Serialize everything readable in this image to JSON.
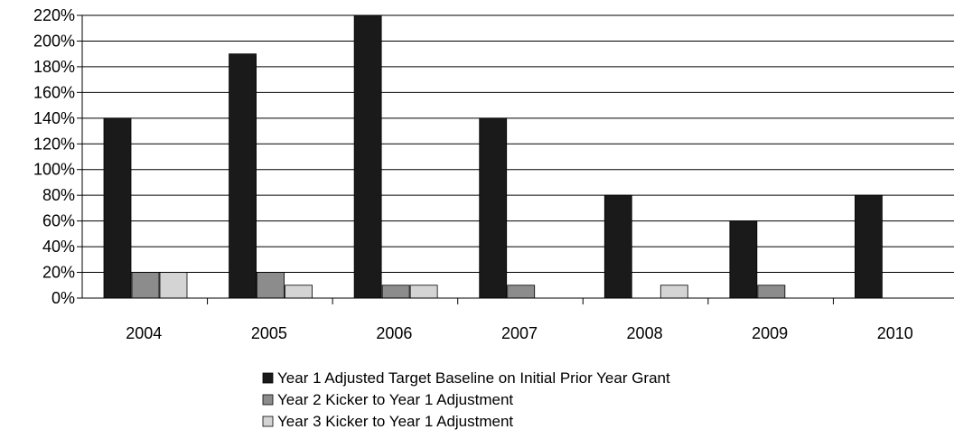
{
  "chart_data": {
    "type": "bar",
    "categories": [
      "2004",
      "2005",
      "2006",
      "2007",
      "2008",
      "2009",
      "2010"
    ],
    "series": [
      {
        "name": "Year 1 Adjusted Target Baseline on Initial Prior Year Grant",
        "color": "#1a1a1a",
        "values": [
          140,
          190,
          220,
          140,
          80,
          60,
          80
        ]
      },
      {
        "name": "Year 2 Kicker to Year 1 Adjustment",
        "color": "#8c8c8c",
        "values": [
          20,
          20,
          10,
          10,
          0,
          10,
          0
        ]
      },
      {
        "name": "Year 3 Kicker to Year 1 Adjustment",
        "color": "#d4d4d4",
        "values": [
          20,
          10,
          10,
          0,
          10,
          0,
          0
        ]
      }
    ],
    "y_ticks": [
      "0%",
      "20%",
      "40%",
      "60%",
      "80%",
      "100%",
      "120%",
      "140%",
      "160%",
      "180%",
      "200%",
      "220%"
    ],
    "ylim": [
      0,
      220
    ],
    "grid": true,
    "legend_position": "bottom-center",
    "title": "",
    "xlabel": "",
    "ylabel": ""
  }
}
